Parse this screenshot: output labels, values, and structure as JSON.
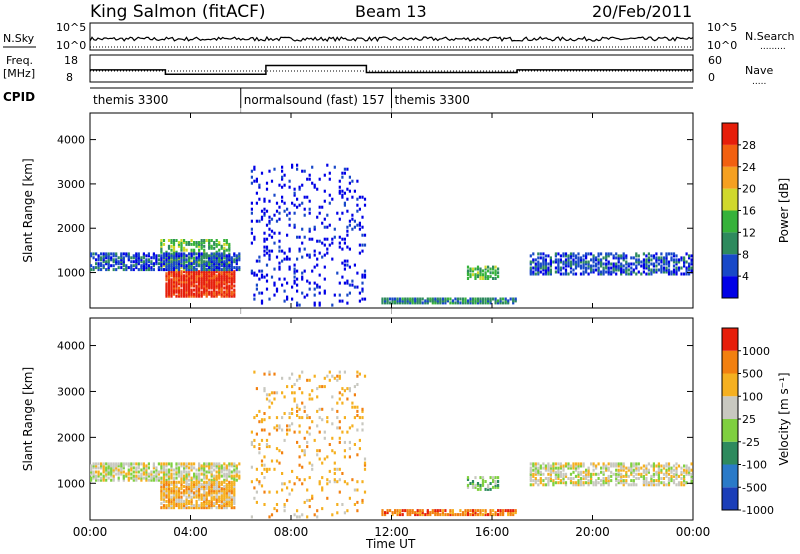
{
  "header": {
    "station": "King Salmon (fitACF)",
    "beam": "Beam 13",
    "date": "20/Feb/2011"
  },
  "top_panels": {
    "nsky_label": "N.Sky",
    "nsky_ticks": [
      "10^5",
      "10^0"
    ],
    "nsearch_label": "N.Search",
    "nsearch_ticks": [
      "10^5",
      "10^0"
    ],
    "freq_label_1": "Freq.",
    "freq_label_2": "[MHz]",
    "freq_ticks": [
      "18",
      "8"
    ],
    "nave_label": "Nave",
    "nave_ticks": [
      "60",
      "0"
    ],
    "cpid_label": "CPID",
    "cpid_segments": [
      {
        "label": "themis 3300",
        "start_h": 0,
        "end_h": 6
      },
      {
        "label": "normalsound (fast) 157",
        "start_h": 6,
        "end_h": 12
      },
      {
        "label": "themis 3300",
        "start_h": 12,
        "end_h": 24
      }
    ],
    "freq_steps": [
      {
        "start_h": 0,
        "end_h": 3,
        "mhz": 12.6
      },
      {
        "start_h": 3,
        "end_h": 7,
        "mhz": 10.6
      },
      {
        "start_h": 7,
        "end_h": 11,
        "mhz": 14.6
      },
      {
        "start_h": 11,
        "end_h": 17,
        "mhz": 11.4
      },
      {
        "start_h": 17,
        "end_h": 24,
        "mhz": 12.6
      }
    ]
  },
  "chart_data": [
    {
      "type": "heatmap",
      "quantity": "Power",
      "ylabel": "Slant Range [km]",
      "xlabel": "Time UT",
      "xlim_hours": [
        0,
        24
      ],
      "ylim_km": [
        200,
        4600
      ],
      "x_tick_labels": [
        "00:00",
        "04:00",
        "08:00",
        "12:00",
        "16:00",
        "20:00",
        "00:00"
      ],
      "y_tick_labels": [
        "1000",
        "2000",
        "3000",
        "4000"
      ],
      "colorbar_label": "Power [dB]",
      "colorbar_ticks": [
        "28",
        "24",
        "20",
        "16",
        "12",
        "8",
        "4"
      ],
      "colors": [
        "#0000e6",
        "#1848c8",
        "#2e8a5e",
        "#36b23a",
        "#cfd82c",
        "#f5a020",
        "#f26010",
        "#e61e0a"
      ],
      "regions": [
        {
          "t0": 3.0,
          "t1": 5.8,
          "r0": 500,
          "r1": 1100,
          "level": 7,
          "density": 0.9
        },
        {
          "t0": 2.8,
          "t1": 5.6,
          "r0": 1100,
          "r1": 1800,
          "level": 3,
          "density": 0.6
        },
        {
          "t0": 0,
          "t1": 6,
          "r0": 1100,
          "r1": 1500,
          "level": 1,
          "density": 0.7
        },
        {
          "t0": 6.4,
          "t1": 11,
          "r0": 300,
          "r1": 3500,
          "level": 0,
          "density": 0.12
        },
        {
          "t0": 11.6,
          "t1": 17,
          "r0": 350,
          "r1": 480,
          "level": 2,
          "density": 0.9
        },
        {
          "t0": 15,
          "t1": 16.3,
          "r0": 900,
          "r1": 1200,
          "level": 3,
          "density": 0.6
        },
        {
          "t0": 17.5,
          "t1": 24,
          "r0": 1000,
          "r1": 1500,
          "level": 1,
          "density": 0.6
        }
      ]
    },
    {
      "type": "heatmap",
      "quantity": "Velocity",
      "ylabel": "Slant Range [km]",
      "xlabel": "Time UT",
      "xlim_hours": [
        0,
        24
      ],
      "ylim_km": [
        200,
        4600
      ],
      "x_tick_labels": [
        "00:00",
        "04:00",
        "08:00",
        "12:00",
        "16:00",
        "20:00",
        "00:00"
      ],
      "y_tick_labels": [
        "1000",
        "2000",
        "3000",
        "4000"
      ],
      "colorbar_label": "Velocity [m s⁻¹]",
      "colorbar_ticks": [
        "1000",
        "500",
        "100",
        "25",
        "-25",
        "-100",
        "-500",
        "-1000"
      ],
      "colors": [
        "#1b3eb8",
        "#2a7ac8",
        "#2e8a5e",
        "#7fd040",
        "#c8c8c0",
        "#f5b020",
        "#f28010",
        "#e61e0a"
      ],
      "regions": [
        {
          "t0": 0,
          "t1": 6,
          "r0": 1100,
          "r1": 1500,
          "level": 4,
          "density": 0.7
        },
        {
          "t0": 2.8,
          "t1": 5.8,
          "r0": 500,
          "r1": 1100,
          "level": 5,
          "density": 0.9
        },
        {
          "t0": 6.4,
          "t1": 11,
          "r0": 300,
          "r1": 3500,
          "level": 5,
          "density": 0.1
        },
        {
          "t0": 11.6,
          "t1": 17,
          "r0": 350,
          "r1": 480,
          "level": 6,
          "density": 0.8
        },
        {
          "t0": 15,
          "t1": 16.3,
          "r0": 900,
          "r1": 1200,
          "level": 3,
          "density": 0.6
        },
        {
          "t0": 17.5,
          "t1": 24,
          "r0": 1000,
          "r1": 1500,
          "level": 4,
          "density": 0.6
        }
      ]
    }
  ]
}
